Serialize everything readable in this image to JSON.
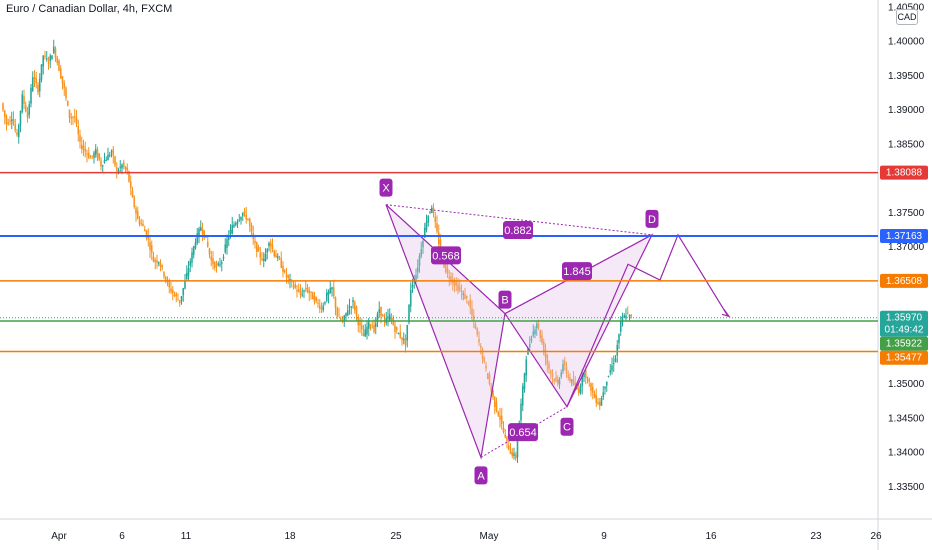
{
  "header": {
    "title": "Euro / Canadian Dollar, 4h, FXCM"
  },
  "price_axis": {
    "currency": "CAD"
  },
  "colors": {
    "up": "#26a69a",
    "down": "#f7931e",
    "red_line": "#e53935",
    "blue_line": "#2962ff",
    "orange_line": "#f57c00",
    "green_line": "#43a047",
    "pattern": "#9c27b0"
  },
  "chart_data": {
    "type": "candlestick",
    "title": "Euro / Canadian Dollar, 4h, FXCM",
    "ylim": [
      1.3325,
      1.4055
    ],
    "y_ticks": [
      "1.40500",
      "1.40000",
      "1.39500",
      "1.39000",
      "1.38500",
      "1.37500",
      "1.37000",
      "1.35000",
      "1.34500",
      "1.34000",
      "1.33500"
    ],
    "x_ticks": [
      "Apr",
      "6",
      "11",
      "18",
      "25",
      "May",
      "9",
      "16",
      "23",
      "26"
    ],
    "horizontal_levels": [
      {
        "label": "1.38088",
        "value": 1.38088,
        "color": "#e53935"
      },
      {
        "label": "1.37163",
        "value": 1.37163,
        "color": "#2962ff"
      },
      {
        "label": "1.36508",
        "value": 1.36508,
        "color": "#f57c00"
      },
      {
        "label": "1.35970",
        "value": 1.3597,
        "color": "#26a69a",
        "sub": "01:49:42"
      },
      {
        "label": "1.35922",
        "value": 1.35922,
        "color": "#43a047"
      },
      {
        "label": "1.35477",
        "value": 1.35477,
        "color": "#f57c00"
      }
    ],
    "pattern_points": [
      {
        "label": "X",
        "value": 1.3762
      },
      {
        "label": "A",
        "value": 1.3393
      },
      {
        "label": "B",
        "value": 1.3603
      },
      {
        "label": "C",
        "value": 1.3467
      },
      {
        "label": "D",
        "value": 1.3718
      }
    ],
    "ratios": [
      "0.882",
      "0.568",
      "1.845",
      "0.654"
    ],
    "projection_end": 1.3599,
    "price_path": [
      1.391,
      1.388,
      1.389,
      1.386,
      1.392,
      1.389,
      1.395,
      1.393,
      1.398,
      1.397,
      1.399,
      1.396,
      1.393,
      1.389,
      1.389,
      1.385,
      1.384,
      1.383,
      1.384,
      1.382,
      1.383,
      1.384,
      1.381,
      1.382,
      1.381,
      1.377,
      1.374,
      1.373,
      1.371,
      1.368,
      1.368,
      1.366,
      1.364,
      1.363,
      1.362,
      1.365,
      1.368,
      1.371,
      1.373,
      1.371,
      1.368,
      1.367,
      1.368,
      1.371,
      1.373,
      1.374,
      1.375,
      1.374,
      1.371,
      1.369,
      1.368,
      1.371,
      1.369,
      1.368,
      1.366,
      1.365,
      1.364,
      1.363,
      1.364,
      1.363,
      1.362,
      1.361,
      1.363,
      1.364,
      1.36,
      1.359,
      1.361,
      1.362,
      1.359,
      1.357,
      1.359,
      1.358,
      1.361,
      1.359,
      1.36,
      1.358,
      1.357,
      1.356,
      1.364,
      1.366,
      1.37,
      1.374,
      1.376,
      1.372,
      1.368,
      1.366,
      1.365,
      1.364,
      1.363,
      1.362,
      1.359,
      1.356,
      1.353,
      1.35,
      1.347,
      1.345,
      1.342,
      1.34,
      1.3393,
      1.347,
      1.354,
      1.357,
      1.359,
      1.356,
      1.353,
      1.351,
      1.35,
      1.353,
      1.351,
      1.35,
      1.349,
      1.352,
      1.35,
      1.348,
      1.347,
      1.35,
      1.352,
      1.354,
      1.359,
      1.3603,
      1.3597
    ]
  }
}
